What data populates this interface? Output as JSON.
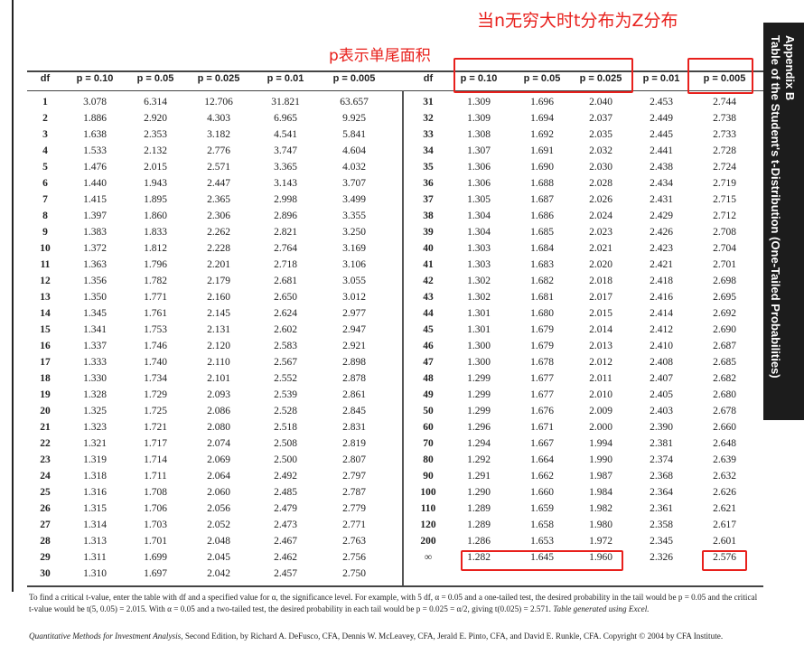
{
  "annotations": {
    "infinity_note": "当n无穷大时t分布为Z分布",
    "one_tail_note": "p表示单尾面积",
    "highlight_color": "#e8201c"
  },
  "sidebar": {
    "line1": "Appendix B",
    "line2": "Table of the Student's t-Distribution (One-Tailed Probabilities)"
  },
  "headers": [
    "df",
    "p = 0.10",
    "p = 0.05",
    "p = 0.025",
    "p = 0.01",
    "p = 0.005"
  ],
  "left_rows": [
    [
      "1",
      "3.078",
      "6.314",
      "12.706",
      "31.821",
      "63.657"
    ],
    [
      "2",
      "1.886",
      "2.920",
      "4.303",
      "6.965",
      "9.925"
    ],
    [
      "3",
      "1.638",
      "2.353",
      "3.182",
      "4.541",
      "5.841"
    ],
    [
      "4",
      "1.533",
      "2.132",
      "2.776",
      "3.747",
      "4.604"
    ],
    [
      "5",
      "1.476",
      "2.015",
      "2.571",
      "3.365",
      "4.032"
    ],
    [
      "6",
      "1.440",
      "1.943",
      "2.447",
      "3.143",
      "3.707"
    ],
    [
      "7",
      "1.415",
      "1.895",
      "2.365",
      "2.998",
      "3.499"
    ],
    [
      "8",
      "1.397",
      "1.860",
      "2.306",
      "2.896",
      "3.355"
    ],
    [
      "9",
      "1.383",
      "1.833",
      "2.262",
      "2.821",
      "3.250"
    ],
    [
      "10",
      "1.372",
      "1.812",
      "2.228",
      "2.764",
      "3.169"
    ],
    [
      "11",
      "1.363",
      "1.796",
      "2.201",
      "2.718",
      "3.106"
    ],
    [
      "12",
      "1.356",
      "1.782",
      "2.179",
      "2.681",
      "3.055"
    ],
    [
      "13",
      "1.350",
      "1.771",
      "2.160",
      "2.650",
      "3.012"
    ],
    [
      "14",
      "1.345",
      "1.761",
      "2.145",
      "2.624",
      "2.977"
    ],
    [
      "15",
      "1.341",
      "1.753",
      "2.131",
      "2.602",
      "2.947"
    ],
    [
      "16",
      "1.337",
      "1.746",
      "2.120",
      "2.583",
      "2.921"
    ],
    [
      "17",
      "1.333",
      "1.740",
      "2.110",
      "2.567",
      "2.898"
    ],
    [
      "18",
      "1.330",
      "1.734",
      "2.101",
      "2.552",
      "2.878"
    ],
    [
      "19",
      "1.328",
      "1.729",
      "2.093",
      "2.539",
      "2.861"
    ],
    [
      "20",
      "1.325",
      "1.725",
      "2.086",
      "2.528",
      "2.845"
    ],
    [
      "21",
      "1.323",
      "1.721",
      "2.080",
      "2.518",
      "2.831"
    ],
    [
      "22",
      "1.321",
      "1.717",
      "2.074",
      "2.508",
      "2.819"
    ],
    [
      "23",
      "1.319",
      "1.714",
      "2.069",
      "2.500",
      "2.807"
    ],
    [
      "24",
      "1.318",
      "1.711",
      "2.064",
      "2.492",
      "2.797"
    ],
    [
      "25",
      "1.316",
      "1.708",
      "2.060",
      "2.485",
      "2.787"
    ],
    [
      "26",
      "1.315",
      "1.706",
      "2.056",
      "2.479",
      "2.779"
    ],
    [
      "27",
      "1.314",
      "1.703",
      "2.052",
      "2.473",
      "2.771"
    ],
    [
      "28",
      "1.313",
      "1.701",
      "2.048",
      "2.467",
      "2.763"
    ],
    [
      "29",
      "1.311",
      "1.699",
      "2.045",
      "2.462",
      "2.756"
    ],
    [
      "30",
      "1.310",
      "1.697",
      "2.042",
      "2.457",
      "2.750"
    ]
  ],
  "right_rows": [
    [
      "31",
      "1.309",
      "1.696",
      "2.040",
      "2.453",
      "2.744"
    ],
    [
      "32",
      "1.309",
      "1.694",
      "2.037",
      "2.449",
      "2.738"
    ],
    [
      "33",
      "1.308",
      "1.692",
      "2.035",
      "2.445",
      "2.733"
    ],
    [
      "34",
      "1.307",
      "1.691",
      "2.032",
      "2.441",
      "2.728"
    ],
    [
      "35",
      "1.306",
      "1.690",
      "2.030",
      "2.438",
      "2.724"
    ],
    [
      "36",
      "1.306",
      "1.688",
      "2.028",
      "2.434",
      "2.719"
    ],
    [
      "37",
      "1.305",
      "1.687",
      "2.026",
      "2.431",
      "2.715"
    ],
    [
      "38",
      "1.304",
      "1.686",
      "2.024",
      "2.429",
      "2.712"
    ],
    [
      "39",
      "1.304",
      "1.685",
      "2.023",
      "2.426",
      "2.708"
    ],
    [
      "40",
      "1.303",
      "1.684",
      "2.021",
      "2.423",
      "2.704"
    ],
    [
      "41",
      "1.303",
      "1.683",
      "2.020",
      "2.421",
      "2.701"
    ],
    [
      "42",
      "1.302",
      "1.682",
      "2.018",
      "2.418",
      "2.698"
    ],
    [
      "43",
      "1.302",
      "1.681",
      "2.017",
      "2.416",
      "2.695"
    ],
    [
      "44",
      "1.301",
      "1.680",
      "2.015",
      "2.414",
      "2.692"
    ],
    [
      "45",
      "1.301",
      "1.679",
      "2.014",
      "2.412",
      "2.690"
    ],
    [
      "46",
      "1.300",
      "1.679",
      "2.013",
      "2.410",
      "2.687"
    ],
    [
      "47",
      "1.300",
      "1.678",
      "2.012",
      "2.408",
      "2.685"
    ],
    [
      "48",
      "1.299",
      "1.677",
      "2.011",
      "2.407",
      "2.682"
    ],
    [
      "49",
      "1.299",
      "1.677",
      "2.010",
      "2.405",
      "2.680"
    ],
    [
      "50",
      "1.299",
      "1.676",
      "2.009",
      "2.403",
      "2.678"
    ],
    [
      "60",
      "1.296",
      "1.671",
      "2.000",
      "2.390",
      "2.660"
    ],
    [
      "70",
      "1.294",
      "1.667",
      "1.994",
      "2.381",
      "2.648"
    ],
    [
      "80",
      "1.292",
      "1.664",
      "1.990",
      "2.374",
      "2.639"
    ],
    [
      "90",
      "1.291",
      "1.662",
      "1.987",
      "2.368",
      "2.632"
    ],
    [
      "100",
      "1.290",
      "1.660",
      "1.984",
      "2.364",
      "2.626"
    ],
    [
      "110",
      "1.289",
      "1.659",
      "1.982",
      "2.361",
      "2.621"
    ],
    [
      "120",
      "1.289",
      "1.658",
      "1.980",
      "2.358",
      "2.617"
    ],
    [
      "200",
      "1.286",
      "1.653",
      "1.972",
      "2.345",
      "2.601"
    ],
    [
      "∞",
      "1.282",
      "1.645",
      "1.960",
      "2.326",
      "2.576"
    ]
  ],
  "footnote": "To find a critical t-value, enter the table with df and a specified value for α, the significance level. For example, with 5 df, α = 0.05 and a one-tailed test, the desired probability in the tail would be p = 0.05 and the critical t-value would be t(5, 0.05) = 2.015. With α = 0.05 and a two-tailed test, the desired probability in each tail would be p = 0.025 = α/2, giving t(0.025) = 2.571.",
  "footnote_italic": "Table generated using Excel.",
  "credit_title": "Quantitative Methods for Investment Analysis",
  "credit_rest": ", Second Edition, by Richard A. DeFusco, CFA, Dennis W. McLeavey, CFA, Jerald E. Pinto, CFA, and David E. Runkle, CFA. Copyright © 2004 by CFA Institute."
}
